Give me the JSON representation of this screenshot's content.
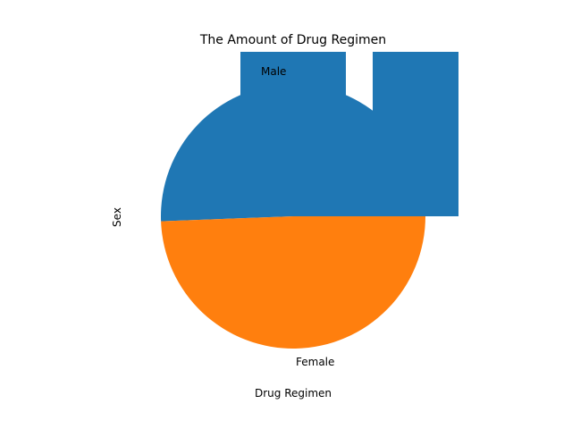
{
  "chart_data": {
    "type": "pie",
    "title": "The Amount of Drug Regimen",
    "xlabel": "Drug Regimen",
    "ylabel": "Sex",
    "slices": [
      {
        "label": "Male",
        "value": 50.6,
        "color": "#1f77b4"
      },
      {
        "label": "Female",
        "value": 49.4,
        "color": "#ff7f0e"
      }
    ],
    "legend": "none",
    "grid": false
  }
}
